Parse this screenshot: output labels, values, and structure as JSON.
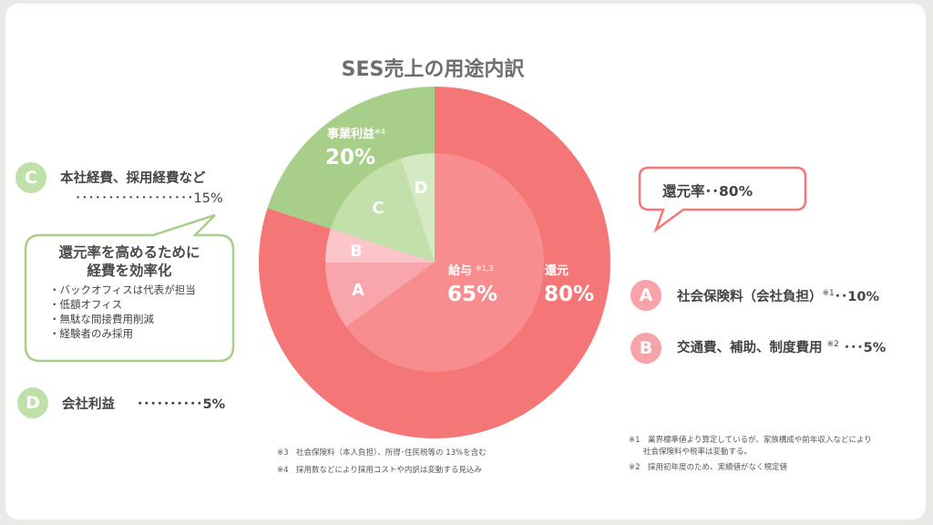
{
  "title": "SES売上の用途内訳",
  "chart_data": {
    "type": "pie",
    "title": "SES売上の用途内訳",
    "outer_ring": [
      {
        "key": "kanmoto",
        "label": "還元",
        "value": 80,
        "display": "80%",
        "color": "#f47677"
      },
      {
        "key": "jigyo",
        "label": "事業利益",
        "note_ref": "※4",
        "value": 20,
        "display": "20%",
        "color": "#a8cf89"
      }
    ],
    "inner_ring": [
      {
        "key": "kyuyo",
        "label": "給与",
        "note_ref": "※1,3",
        "value": 65,
        "display": "65%",
        "color": "#f78d8e"
      },
      {
        "key": "A",
        "label": "A",
        "value": 10,
        "color": "#f8a5ab"
      },
      {
        "key": "B",
        "label": "B",
        "value": 5,
        "color": "#fbc5ca"
      },
      {
        "key": "C",
        "label": "C",
        "value": 15,
        "color": "#c3e0ab"
      },
      {
        "key": "D",
        "label": "D",
        "value": 5,
        "color": "#d5eac3"
      }
    ]
  },
  "left": {
    "C": {
      "badge": "C",
      "text": "本社経費、採用経費など",
      "dots": "･･････････････････15%"
    },
    "bubble": {
      "title_line1": "還元率を高めるために",
      "title_line2": "経費を効率化",
      "bullets": [
        "・バックオフィスは代表が担当",
        "・低額オフィス",
        "・無駄な間接費用削減",
        "・経験者のみ採用"
      ]
    },
    "D": {
      "badge": "D",
      "text": "会社利益",
      "dots": "･･････････5%"
    }
  },
  "right": {
    "bubble": "還元率･･80%",
    "A": {
      "badge": "A",
      "text": "社会保険料（会社負担）",
      "sup": "※1",
      "value": "･･10%"
    },
    "B": {
      "badge": "B",
      "text": "交通費、補助、制度費用",
      "sup": "※2",
      "value": "･･･5%"
    }
  },
  "notes": {
    "n3": "※3　社会保険料（本人負担）、所得･住民税等の 13%を含む",
    "n4": "※4　採用数などにより採用コストや内訳は変動する見込み",
    "n1a": "※1　業界標準値より算定しているが、家族構成や前年収入などにより",
    "n1b": "社会保険料や税率は変動する。",
    "n2": "※2　採用初年度のため、実績値がなく規定値"
  },
  "colors": {
    "red": "#f47677",
    "green": "#a8cf89",
    "pink_badge": "#f6a3a9",
    "green_badge": "#bfe0a9"
  }
}
